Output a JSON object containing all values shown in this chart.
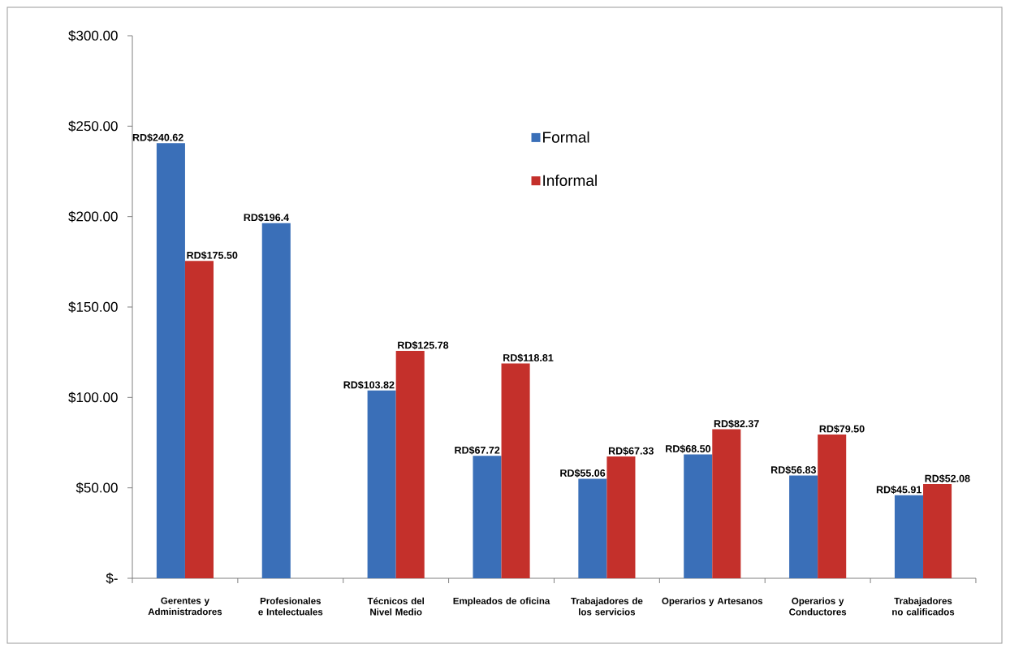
{
  "chart_data": {
    "type": "bar",
    "categories": [
      "Gerentes y Administradores",
      "Profesionales e Intelectuales",
      "Técnicos del Nivel Medio",
      "Empleados de oficina",
      "Trabajadores de los servicios",
      "Operarios y Artesanos",
      "Operarios y Conductores",
      "Trabajadores no calificados"
    ],
    "series": [
      {
        "name": "Formal",
        "color": "#3a6fb8",
        "values": [
          240.62,
          196.4,
          103.82,
          67.72,
          55.06,
          68.5,
          56.83,
          45.91
        ],
        "value_labels": [
          "RD$240.62",
          "RD$196.4",
          "RD$103.82",
          "RD$67.72",
          "RD$55.06",
          "RD$68.50",
          "RD$56.83",
          "RD$45.91"
        ]
      },
      {
        "name": "Informal",
        "color": "#c4302b",
        "values": [
          175.5,
          null,
          125.78,
          118.81,
          67.33,
          82.37,
          79.5,
          52.08
        ],
        "value_labels": [
          "RD$175.50",
          null,
          "RD$125.78",
          "RD$118.81",
          "RD$67.33",
          "RD$82.37",
          "RD$79.50",
          "RD$52.08"
        ]
      }
    ],
    "ylim": [
      0,
      300
    ],
    "yticks": [
      {
        "value": 0,
        "label": "$-"
      },
      {
        "value": 50,
        "label": "$50.00"
      },
      {
        "value": 100,
        "label": "$100.00"
      },
      {
        "value": 150,
        "label": "$150.00"
      },
      {
        "value": 200,
        "label": "$200.00"
      },
      {
        "value": 250,
        "label": "$250.00"
      },
      {
        "value": 300,
        "label": "$300.00"
      }
    ],
    "legend": "top"
  }
}
